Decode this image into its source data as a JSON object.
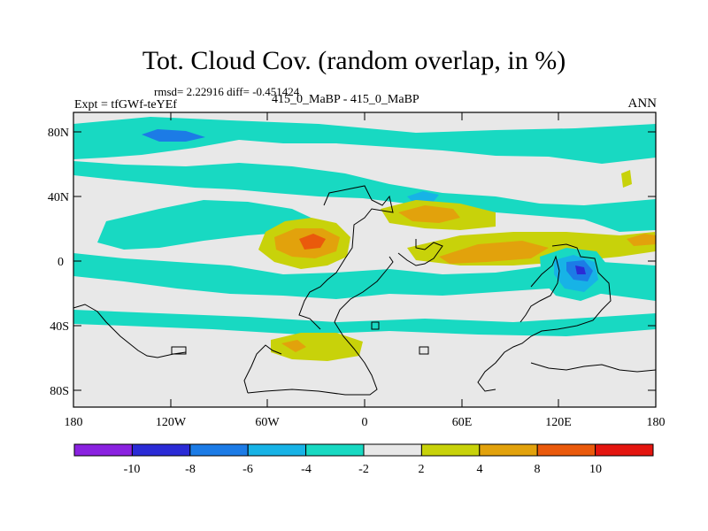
{
  "title": "Tot. Cloud Cov. (random overlap, in %)",
  "stats": "rmsd= 2.22916 diff= -0.451424",
  "expt": "Expt = tfGWf-teYEf",
  "comparison": "415_0_MaBP - 415_0_MaBP",
  "season": "ANN",
  "lat_labels": [
    "80N",
    "40N",
    "0",
    "40S",
    "80S"
  ],
  "lon_labels": [
    "180",
    "120W",
    "60W",
    "0",
    "60E",
    "120E",
    "180"
  ],
  "colorbar": {
    "labels": [
      "-10",
      "-8",
      "-6",
      "-4",
      "-2",
      "2",
      "4",
      "8",
      "10"
    ],
    "colors": [
      "#8a22e0",
      "#2b2bd6",
      "#1c7be6",
      "#17b3e6",
      "#18d9c2",
      "#e8e8e8",
      "#c8d20a",
      "#e2a20c",
      "#ea5a0c",
      "#e4150f"
    ]
  }
}
